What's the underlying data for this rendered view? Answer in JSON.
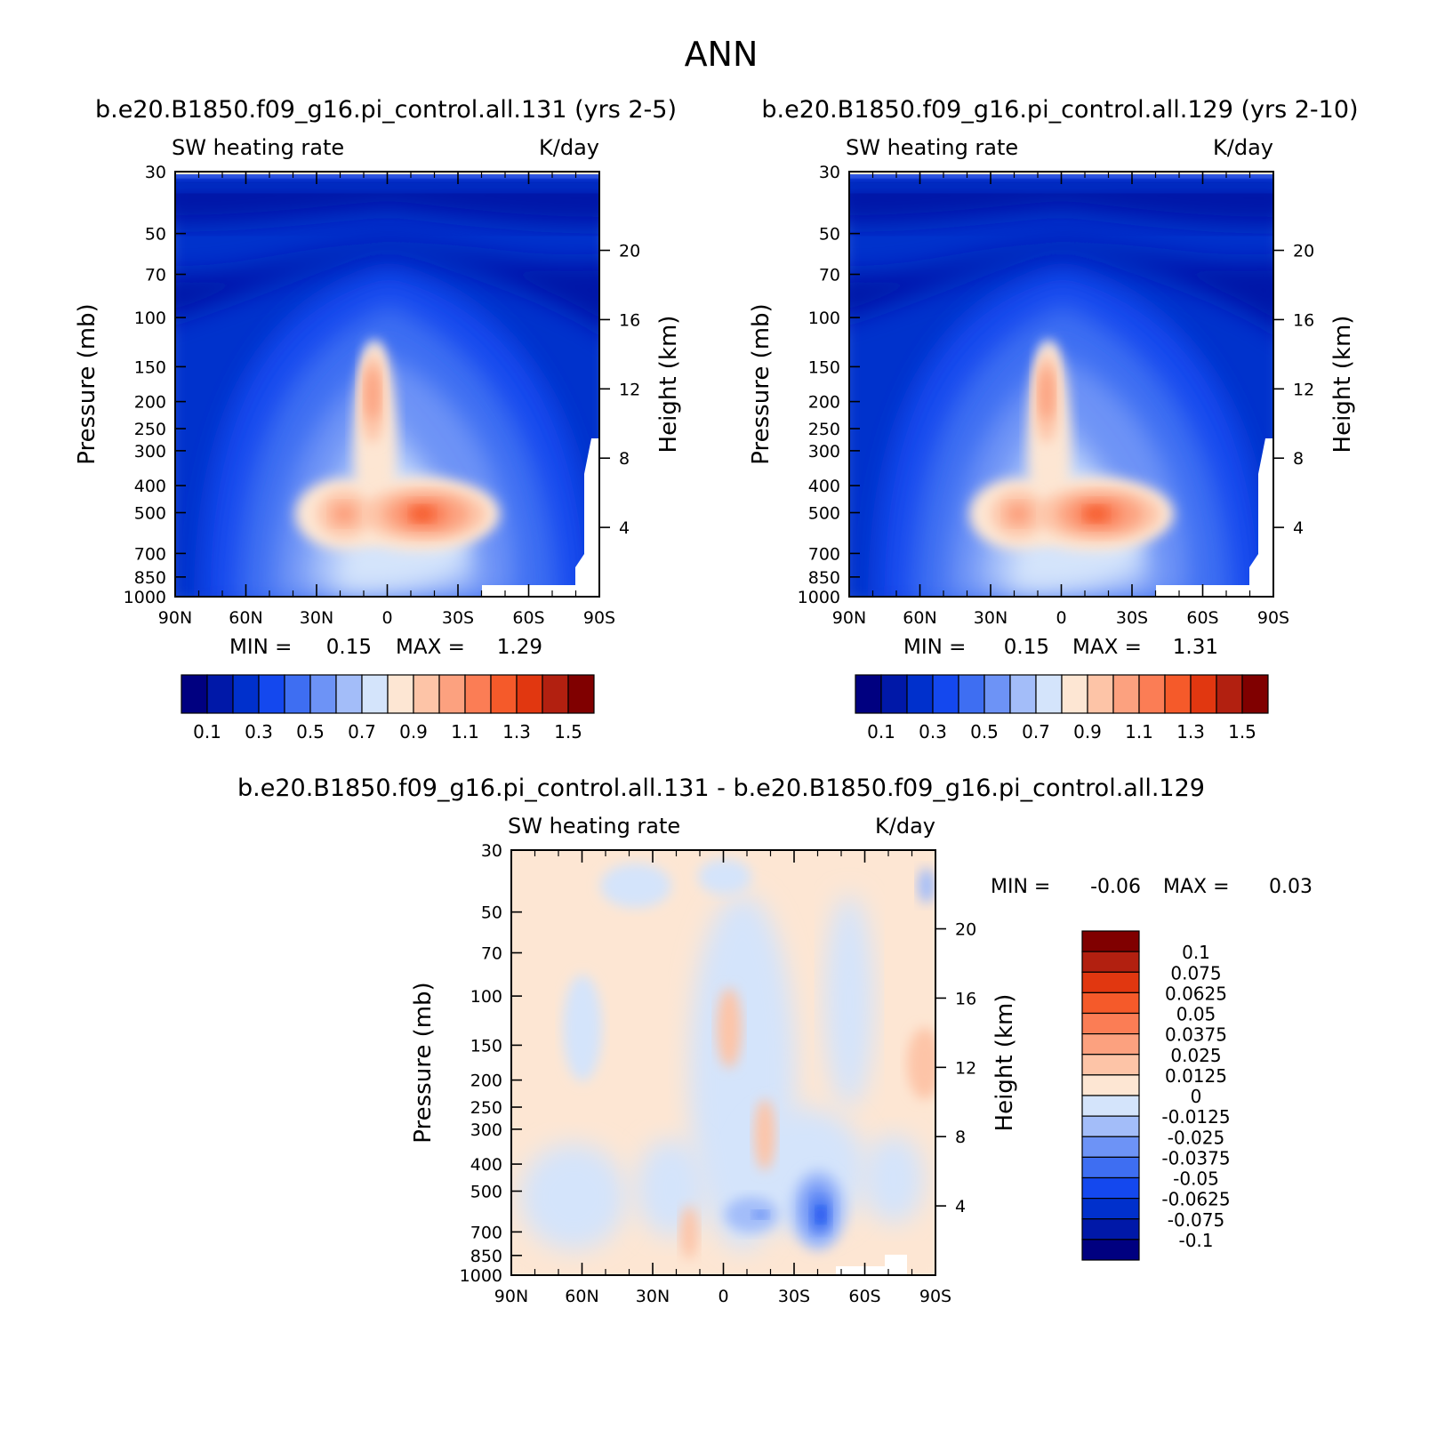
{
  "page_title": "ANN",
  "colors": {
    "abs_scale": [
      "#000080",
      "#0018a8",
      "#0030cc",
      "#1448ee",
      "#3e6ef2",
      "#6d93f6",
      "#a3bdf9",
      "#d4e4fb",
      "#fde6d3",
      "#fdc4a7",
      "#fca17f",
      "#fb7d55",
      "#f55a2a",
      "#e13710",
      "#b22010",
      "#800000"
    ],
    "diff_scale": [
      "#000080",
      "#0018a8",
      "#0030cc",
      "#1448ee",
      "#3e6ef2",
      "#6d93f6",
      "#a3bdf9",
      "#d4e4fb",
      "#fde6d3",
      "#fdc4a7",
      "#fca17f",
      "#fb7d55",
      "#f55a2a",
      "#e13710",
      "#b22010",
      "#800000"
    ]
  },
  "chart_data": [
    {
      "id": "top-left",
      "type": "heatmap",
      "case_title": "b.e20.B1850.f09_g16.pi_control.all.131 (yrs 2-5)",
      "left_label": "SW heating rate",
      "right_label": "K/day",
      "ylabel": "Pressure (mb)",
      "y2label": "Height (km)",
      "x_ticks": [
        "90N",
        "60N",
        "30N",
        "0",
        "30S",
        "60S",
        "90S"
      ],
      "y_ticks": [
        30,
        50,
        70,
        100,
        150,
        200,
        250,
        300,
        400,
        500,
        700,
        850,
        1000
      ],
      "height_ticks": [
        20,
        16,
        12,
        8,
        4
      ],
      "min_label": "MIN =",
      "min_value": "0.15",
      "max_label": "MAX =",
      "max_value": "1.29",
      "colorbar_labels": [
        "0.1",
        "0.3",
        "0.5",
        "0.7",
        "0.9",
        "1.1",
        "1.3",
        "1.5"
      ]
    },
    {
      "id": "top-right",
      "type": "heatmap",
      "case_title": "b.e20.B1850.f09_g16.pi_control.all.129 (yrs 2-10)",
      "left_label": "SW heating rate",
      "right_label": "K/day",
      "ylabel": "Pressure (mb)",
      "y2label": "Height (km)",
      "x_ticks": [
        "90N",
        "60N",
        "30N",
        "0",
        "30S",
        "60S",
        "90S"
      ],
      "y_ticks": [
        30,
        50,
        70,
        100,
        150,
        200,
        250,
        300,
        400,
        500,
        700,
        850,
        1000
      ],
      "height_ticks": [
        20,
        16,
        12,
        8,
        4
      ],
      "min_label": "MIN =",
      "min_value": "0.15",
      "max_label": "MAX =",
      "max_value": "1.31",
      "colorbar_labels": [
        "0.1",
        "0.3",
        "0.5",
        "0.7",
        "0.9",
        "1.1",
        "1.3",
        "1.5"
      ]
    },
    {
      "id": "bottom",
      "type": "heatmap",
      "case_title": "b.e20.B1850.f09_g16.pi_control.all.131 - b.e20.B1850.f09_g16.pi_control.all.129",
      "left_label": "SW heating rate",
      "right_label": "K/day",
      "ylabel": "Pressure (mb)",
      "y2label": "Height (km)",
      "x_ticks": [
        "90N",
        "60N",
        "30N",
        "0",
        "30S",
        "60S",
        "90S"
      ],
      "y_ticks": [
        30,
        50,
        70,
        100,
        150,
        200,
        250,
        300,
        400,
        500,
        700,
        850,
        1000
      ],
      "height_ticks": [
        20,
        16,
        12,
        8,
        4
      ],
      "min_label": "MIN =",
      "min_value": "-0.06",
      "max_label": "MAX =",
      "max_value": "0.03",
      "colorbar_labels": [
        "0.1",
        "0.075",
        "0.0625",
        "0.05",
        "0.0375",
        "0.025",
        "0.0125",
        "0",
        "-0.0125",
        "-0.025",
        "-0.0375",
        "-0.05",
        "-0.0625",
        "-0.075",
        "-0.1"
      ]
    }
  ]
}
